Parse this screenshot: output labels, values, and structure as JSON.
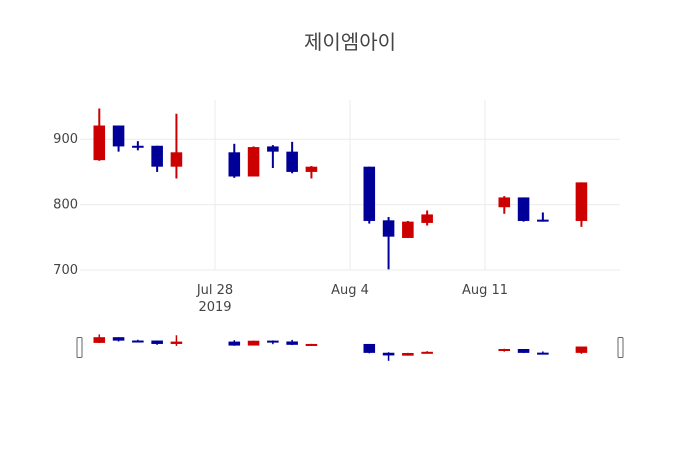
{
  "title": "제이엠아이",
  "colors": {
    "increasing": "#CC0000",
    "decreasing": "#000099",
    "grid": "#ebebeb",
    "text": "#444444"
  },
  "x_ticks": [
    {
      "date": "2019-07-28",
      "label": "Jul 28",
      "sublabel": "2019"
    },
    {
      "date": "2019-08-04",
      "label": "Aug 4",
      "sublabel": ""
    },
    {
      "date": "2019-08-11",
      "label": "Aug 11",
      "sublabel": ""
    }
  ],
  "chart_data": {
    "type": "candlestick",
    "title": "제이엠아이",
    "xlabel": "",
    "ylabel": "",
    "x_range": [
      "2019-07-21",
      "2019-08-18"
    ],
    "ylim": [
      700,
      960
    ],
    "y_ticks": [
      700,
      800,
      900
    ],
    "grid": true,
    "range_slider": true,
    "candles": [
      {
        "date": "2019-07-22",
        "open": 868,
        "high": 947,
        "low": 867,
        "close": 921
      },
      {
        "date": "2019-07-23",
        "open": 921,
        "high": 921,
        "low": 881,
        "close": 889
      },
      {
        "date": "2019-07-24",
        "open": 890,
        "high": 897,
        "low": 883,
        "close": 888
      },
      {
        "date": "2019-07-25",
        "open": 890,
        "high": 890,
        "low": 850,
        "close": 858
      },
      {
        "date": "2019-07-26",
        "open": 858,
        "high": 939,
        "low": 840,
        "close": 880
      },
      {
        "date": "2019-07-29",
        "open": 880,
        "high": 893,
        "low": 841,
        "close": 843
      },
      {
        "date": "2019-07-30",
        "open": 843,
        "high": 889,
        "low": 843,
        "close": 888
      },
      {
        "date": "2019-07-31",
        "open": 889,
        "high": 891,
        "low": 856,
        "close": 881
      },
      {
        "date": "2019-08-01",
        "open": 881,
        "high": 896,
        "low": 848,
        "close": 850
      },
      {
        "date": "2019-08-02",
        "open": 850,
        "high": 859,
        "low": 840,
        "close": 858
      },
      {
        "date": "2019-08-05",
        "open": 858,
        "high": 858,
        "low": 771,
        "close": 775
      },
      {
        "date": "2019-08-06",
        "open": 776,
        "high": 781,
        "low": 701,
        "close": 751
      },
      {
        "date": "2019-08-07",
        "open": 749,
        "high": 775,
        "low": 749,
        "close": 774
      },
      {
        "date": "2019-08-08",
        "open": 772,
        "high": 791,
        "low": 768,
        "close": 785
      },
      {
        "date": "2019-08-12",
        "open": 796,
        "high": 813,
        "low": 786,
        "close": 811
      },
      {
        "date": "2019-08-13",
        "open": 811,
        "high": 811,
        "low": 774,
        "close": 775
      },
      {
        "date": "2019-08-14",
        "open": 777,
        "high": 788,
        "low": 774,
        "close": 775
      },
      {
        "date": "2019-08-16",
        "open": 775,
        "high": 834,
        "low": 766,
        "close": 834
      }
    ]
  }
}
